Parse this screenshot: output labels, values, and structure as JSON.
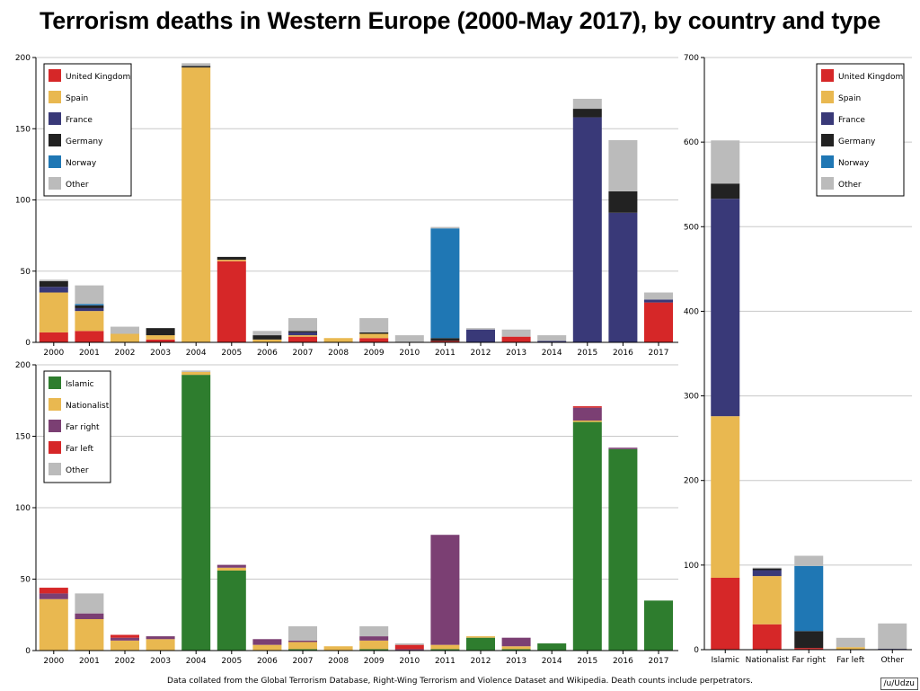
{
  "title": "Terrorism deaths in Western Europe (2000-May 2017), by country and type",
  "footnote": "Data collated from the Global Terrorism Database, Right-Wing Terrorism and Violence Dataset and Wikipedia. Death counts include perpetrators.",
  "credit": "/u/Udzu",
  "chart_data": [
    {
      "id": "by-country-year",
      "type": "bar",
      "stacked": true,
      "ylim": [
        0,
        200
      ],
      "yticks": [
        0,
        50,
        100,
        150,
        200
      ],
      "legend_position": "top-left",
      "categories": [
        "2000",
        "2001",
        "2002",
        "2003",
        "2004",
        "2005",
        "2006",
        "2007",
        "2008",
        "2009",
        "2010",
        "2011",
        "2012",
        "2013",
        "2014",
        "2015",
        "2016",
        "2017"
      ],
      "series": [
        {
          "name": "United Kingdom",
          "color": "#d62728",
          "values": [
            7,
            8,
            0,
            2,
            0,
            57,
            0,
            4,
            0,
            3,
            0,
            1,
            0,
            4,
            0,
            0,
            0,
            28
          ]
        },
        {
          "name": "Spain",
          "color": "#e9b850",
          "values": [
            28,
            14,
            6,
            3,
            193,
            1,
            2,
            1,
            3,
            3,
            0,
            0,
            0,
            0,
            0,
            0,
            0,
            0
          ]
        },
        {
          "name": "France",
          "color": "#393978",
          "values": [
            4,
            2,
            0,
            0,
            0,
            0,
            0,
            2,
            0,
            0,
            0,
            0,
            9,
            0,
            1,
            158,
            91,
            2
          ]
        },
        {
          "name": "Germany",
          "color": "#222222",
          "values": [
            4,
            2,
            0,
            5,
            1,
            2,
            3,
            1,
            0,
            1,
            0,
            2,
            0,
            0,
            0,
            6,
            15,
            0
          ]
        },
        {
          "name": "Norway",
          "color": "#1f77b4",
          "values": [
            0,
            1,
            0,
            0,
            0,
            0,
            0,
            0,
            0,
            0,
            0,
            77,
            0,
            0,
            0,
            0,
            0,
            0
          ]
        },
        {
          "name": "Other",
          "color": "#bbbbbb",
          "values": [
            1,
            13,
            5,
            0,
            2,
            0,
            3,
            9,
            0,
            10,
            5,
            1,
            1,
            5,
            4,
            7,
            36,
            5
          ]
        }
      ]
    },
    {
      "id": "by-country-type",
      "type": "bar",
      "stacked": true,
      "ylim": [
        0,
        700
      ],
      "yticks": [
        0,
        100,
        200,
        300,
        400,
        500,
        600,
        700
      ],
      "legend_position": "top-right",
      "categories": [
        "Islamic",
        "Nationalist",
        "Far right",
        "Far left",
        "Other"
      ],
      "series": [
        {
          "name": "United Kingdom",
          "color": "#d62728",
          "values": [
            85,
            30,
            2,
            0,
            0
          ]
        },
        {
          "name": "Spain",
          "color": "#e9b850",
          "values": [
            191,
            57,
            0,
            3,
            0
          ]
        },
        {
          "name": "France",
          "color": "#393978",
          "values": [
            257,
            7,
            0,
            0,
            1
          ]
        },
        {
          "name": "Germany",
          "color": "#222222",
          "values": [
            18,
            2,
            20,
            0,
            0
          ]
        },
        {
          "name": "Norway",
          "color": "#1f77b4",
          "values": [
            0,
            0,
            77,
            0,
            0
          ]
        },
        {
          "name": "Other",
          "color": "#bbbbbb",
          "values": [
            51,
            1,
            12,
            11,
            30
          ]
        }
      ]
    },
    {
      "id": "by-type-year",
      "type": "bar",
      "stacked": true,
      "ylim": [
        0,
        200
      ],
      "yticks": [
        0,
        50,
        100,
        150,
        200
      ],
      "legend_position": "top-left",
      "categories": [
        "2000",
        "2001",
        "2002",
        "2003",
        "2004",
        "2005",
        "2006",
        "2007",
        "2008",
        "2009",
        "2010",
        "2011",
        "2012",
        "2013",
        "2014",
        "2015",
        "2016",
        "2017"
      ],
      "series": [
        {
          "name": "Islamic",
          "color": "#2e7d2e",
          "values": [
            0,
            0,
            0,
            0,
            193,
            56,
            0,
            1,
            0,
            1,
            0,
            1,
            9,
            1,
            5,
            160,
            141,
            35
          ]
        },
        {
          "name": "Nationalist",
          "color": "#e9b850",
          "values": [
            36,
            22,
            7,
            8,
            2,
            2,
            4,
            5,
            3,
            6,
            0,
            3,
            1,
            2,
            0,
            1,
            0,
            0
          ]
        },
        {
          "name": "Far right",
          "color": "#7b3f73",
          "values": [
            4,
            4,
            2,
            2,
            0,
            2,
            4,
            1,
            0,
            3,
            1,
            77,
            0,
            6,
            0,
            9,
            1,
            0
          ]
        },
        {
          "name": "Far left",
          "color": "#d62728",
          "values": [
            4,
            0,
            2,
            0,
            0,
            0,
            0,
            0,
            0,
            0,
            3,
            0,
            0,
            0,
            0,
            1,
            0,
            0
          ]
        },
        {
          "name": "Other",
          "color": "#bbbbbb",
          "values": [
            0,
            14,
            0,
            0,
            1,
            0,
            0,
            10,
            0,
            7,
            1,
            0,
            0,
            0,
            0,
            0,
            0,
            0
          ]
        }
      ]
    }
  ]
}
